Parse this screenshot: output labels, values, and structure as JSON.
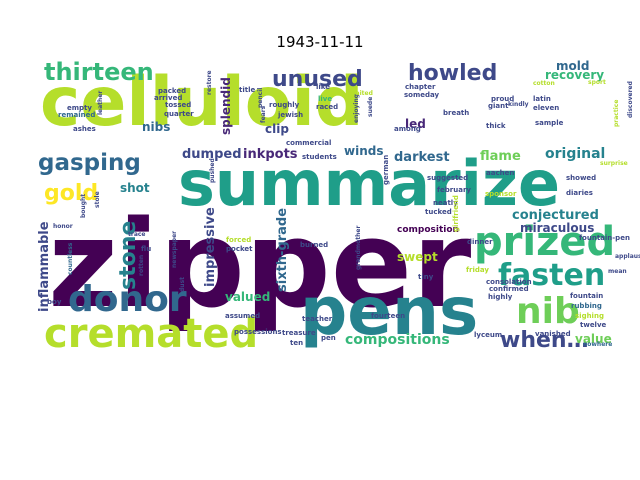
{
  "figure": {
    "title": "1943-11-11"
  },
  "palette": {
    "purple": "#440154",
    "violet": "#482878",
    "indigo": "#3e4989",
    "blue": "#31688e",
    "steel": "#26828e",
    "teal": "#1f9e89",
    "green": "#35b779",
    "lime": "#6ece58",
    "yellowgreen": "#b5de2b",
    "yellow": "#fde725"
  },
  "words": [
    {
      "text": "zipper",
      "color": "#440154"
    },
    {
      "text": "celluloid",
      "color": "#b5de2b"
    },
    {
      "text": "summarize",
      "color": "#1f9e89"
    },
    {
      "text": "pens",
      "color": "#26828e"
    },
    {
      "text": "cremated",
      "color": "#b5de2b"
    },
    {
      "text": "prized",
      "color": "#35b779"
    },
    {
      "text": "donor",
      "color": "#31688e"
    },
    {
      "text": "fasten",
      "color": "#1f9e89"
    },
    {
      "text": "nib",
      "color": "#6ece58"
    },
    {
      "text": "thirteen",
      "color": "#35b779"
    },
    {
      "text": "gasping",
      "color": "#31688e"
    },
    {
      "text": "howled",
      "color": "#3e4989"
    },
    {
      "text": "unused",
      "color": "#3e4989"
    },
    {
      "text": "stone",
      "color": "#26828e"
    },
    {
      "text": "gold",
      "color": "#fde725"
    },
    {
      "text": "when…",
      "color": "#3e4989"
    },
    {
      "text": "compositions",
      "color": "#35b779"
    },
    {
      "text": "inflammable",
      "color": "#3e4989"
    },
    {
      "text": "impressive",
      "color": "#3e4989"
    },
    {
      "text": "sixth-grade",
      "color": "#31688e"
    },
    {
      "text": "splendid",
      "color": "#482878"
    },
    {
      "text": "conjectured",
      "color": "#26828e"
    },
    {
      "text": "original",
      "color": "#26828e"
    },
    {
      "text": "miraculous",
      "color": "#3e4989"
    },
    {
      "text": "dumped",
      "color": "#3e4989"
    },
    {
      "text": "inkpots",
      "color": "#482878"
    },
    {
      "text": "winds",
      "color": "#31688e"
    },
    {
      "text": "darkest",
      "color": "#31688e"
    },
    {
      "text": "flame",
      "color": "#6ece58"
    },
    {
      "text": "recovery",
      "color": "#35b779"
    },
    {
      "text": "mold",
      "color": "#31688e"
    },
    {
      "text": "valued",
      "color": "#35b779"
    },
    {
      "text": "nibs",
      "color": "#31688e"
    },
    {
      "text": "shot",
      "color": "#26828e"
    },
    {
      "text": "clip",
      "color": "#3e4989"
    },
    {
      "text": "led",
      "color": "#482878"
    },
    {
      "text": "value",
      "color": "#6ece58"
    },
    {
      "text": "swept",
      "color": "#b5de2b"
    },
    {
      "text": "composition",
      "color": "#440154"
    },
    {
      "text": "tiny",
      "color": "#3e4989"
    },
    {
      "text": "fountain",
      "color": "#3e4989"
    },
    {
      "text": "rubbing",
      "color": "#31688e"
    },
    {
      "text": "sighing",
      "color": "#b5de2b"
    },
    {
      "text": "twelve",
      "color": "#3e4989"
    },
    {
      "text": "nowhere",
      "color": "#31688e"
    },
    {
      "text": "vanished",
      "color": "#3e4989"
    },
    {
      "text": "lyceum",
      "color": "#3e4989"
    },
    {
      "text": "fourteen",
      "color": "#3e4989"
    },
    {
      "text": "teacher",
      "color": "#3e4989"
    },
    {
      "text": "ten",
      "color": "#3e4989"
    },
    {
      "text": "treasure",
      "color": "#3e4989"
    },
    {
      "text": "assumed",
      "color": "#3e4989"
    },
    {
      "text": "possessions",
      "color": "#3e4989"
    },
    {
      "text": "pocket",
      "color": "#3e4989"
    },
    {
      "text": "forced",
      "color": "#b5de2b"
    },
    {
      "text": "burned",
      "color": "#3e4989"
    },
    {
      "text": "newspaper",
      "color": "#3e4989"
    },
    {
      "text": "honor",
      "color": "#3e4989"
    },
    {
      "text": "countless",
      "color": "#31688e"
    },
    {
      "text": "flu",
      "color": "#3e4989"
    },
    {
      "text": "rotten",
      "color": "#3e4989"
    },
    {
      "text": "trace",
      "color": "#3e4989"
    },
    {
      "text": "dust",
      "color": "#3e4989"
    },
    {
      "text": "pushed",
      "color": "#3e4989"
    },
    {
      "text": "commercial",
      "color": "#3e4989"
    },
    {
      "text": "students",
      "color": "#3e4989"
    },
    {
      "text": "raced",
      "color": "#3e4989"
    },
    {
      "text": "live",
      "color": "#35b779"
    },
    {
      "text": "like",
      "color": "#3e4989"
    },
    {
      "text": "aachen",
      "color": "#3e4989"
    },
    {
      "text": "february",
      "color": "#3e4989"
    },
    {
      "text": "neatly",
      "color": "#3e4989"
    },
    {
      "text": "tucked",
      "color": "#3e4989"
    },
    {
      "text": "suggested",
      "color": "#3e4989"
    },
    {
      "text": "sponsor",
      "color": "#b5de2b"
    },
    {
      "text": "showed",
      "color": "#3e4989"
    },
    {
      "text": "diaries",
      "color": "#3e4989"
    },
    {
      "text": "fountain-pen",
      "color": "#3e4989"
    },
    {
      "text": "confirmed",
      "color": "#3e4989"
    },
    {
      "text": "consolation",
      "color": "#3e4989"
    },
    {
      "text": "highly",
      "color": "#3e4989"
    },
    {
      "text": "friday",
      "color": "#b5de2b"
    },
    {
      "text": "giant",
      "color": "#3e4989"
    },
    {
      "text": "proud",
      "color": "#3e4989"
    },
    {
      "text": "latin",
      "color": "#3e4989"
    },
    {
      "text": "eleven",
      "color": "#3e4989"
    },
    {
      "text": "breath",
      "color": "#3e4989"
    },
    {
      "text": "thick",
      "color": "#3e4989"
    },
    {
      "text": "sample",
      "color": "#3e4989"
    },
    {
      "text": "kindly",
      "color": "#3e4989"
    },
    {
      "text": "cotton",
      "color": "#b5de2b"
    },
    {
      "text": "someday",
      "color": "#3e4989"
    },
    {
      "text": "chapter",
      "color": "#3e4989"
    },
    {
      "text": "enjoying",
      "color": "#3e4989"
    },
    {
      "text": "among",
      "color": "#3e4989"
    },
    {
      "text": "jewish",
      "color": "#3e4989"
    },
    {
      "text": "roughly",
      "color": "#3e4989"
    },
    {
      "text": "fears",
      "color": "#3e4989"
    },
    {
      "text": "pencil",
      "color": "#3e4989"
    },
    {
      "text": "title",
      "color": "#3e4989"
    },
    {
      "text": "restore",
      "color": "#3e4989"
    },
    {
      "text": "packed",
      "color": "#3e4989"
    },
    {
      "text": "arrived",
      "color": "#3e4989"
    },
    {
      "text": "tossed",
      "color": "#3e4989"
    },
    {
      "text": "quarter",
      "color": "#3e4989"
    },
    {
      "text": "empty",
      "color": "#3e4989"
    },
    {
      "text": "remained",
      "color": "#31688e"
    },
    {
      "text": "ashes",
      "color": "#3e4989"
    },
    {
      "text": "leather",
      "color": "#3e4989"
    },
    {
      "text": "pen",
      "color": "#3e4989"
    },
    {
      "text": "grandmother",
      "color": "#3e4989"
    },
    {
      "text": "discovered",
      "color": "#3e4989"
    },
    {
      "text": "practice",
      "color": "#b5de2b"
    },
    {
      "text": "dinner",
      "color": "#3e4989"
    },
    {
      "text": "boy",
      "color": "#3e4989"
    },
    {
      "text": "stole",
      "color": "#3e4989"
    },
    {
      "text": "bought",
      "color": "#3e4989"
    },
    {
      "text": "waited",
      "color": "#b5de2b"
    },
    {
      "text": "suede",
      "color": "#3e4989"
    },
    {
      "text": "sport",
      "color": "#b5de2b"
    },
    {
      "text": "german",
      "color": "#3e4989"
    },
    {
      "text": "girlfriend",
      "color": "#b5de2b"
    },
    {
      "text": "applause",
      "color": "#3e4989"
    },
    {
      "text": "mean",
      "color": "#3e4989"
    },
    {
      "text": "surprise",
      "color": "#b5de2b"
    }
  ]
}
